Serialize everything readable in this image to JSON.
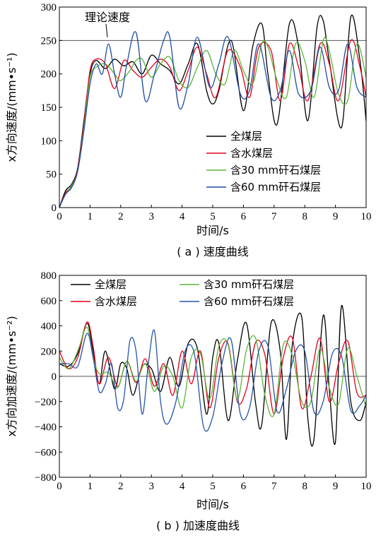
{
  "chart_data": [
    {
      "type": "line",
      "panel_caption": "( a ) 速度曲线",
      "xlabel": "时间/s",
      "ylabel": "x方向速度/(mm•s⁻¹)",
      "xlim": [
        0,
        10
      ],
      "ylim": [
        0,
        300
      ],
      "xticks": [
        "0",
        "1",
        "2",
        "3",
        "4",
        "5",
        "6",
        "7",
        "8",
        "9",
        "10"
      ],
      "yticks": [
        "0",
        "50",
        "100",
        "150",
        "200",
        "250",
        "300"
      ],
      "reference_line": {
        "y": 250,
        "label": "理论速度"
      },
      "legend_position": "lower-right",
      "grid": false,
      "series": [
        {
          "name": "全煤层",
          "color": "#000000",
          "x": [
            0,
            0.2,
            0.4,
            0.6,
            0.8,
            1.0,
            1.2,
            1.5,
            1.8,
            2.1,
            2.4,
            2.7,
            3.0,
            3.3,
            3.6,
            3.9,
            4.2,
            4.5,
            4.8,
            5.0,
            5.2,
            5.6,
            6.0,
            6.3,
            6.6,
            6.8,
            7.1,
            7.5,
            7.8,
            8.1,
            8.4,
            8.6,
            8.8,
            9.2,
            9.5,
            9.8,
            10.0
          ],
          "values": [
            0,
            25,
            35,
            60,
            130,
            200,
            220,
            208,
            222,
            212,
            218,
            200,
            228,
            215,
            205,
            185,
            215,
            245,
            175,
            155,
            175,
            250,
            145,
            240,
            275,
            200,
            125,
            275,
            240,
            130,
            270,
            280,
            220,
            120,
            285,
            220,
            130
          ]
        },
        {
          "name": "含水煤层",
          "color": "#e3001b",
          "x": [
            0,
            0.2,
            0.4,
            0.6,
            0.8,
            1.0,
            1.2,
            1.5,
            1.8,
            2.1,
            2.4,
            2.7,
            3.0,
            3.3,
            3.6,
            3.9,
            4.2,
            4.5,
            4.8,
            5.1,
            5.5,
            5.9,
            6.2,
            6.5,
            6.9,
            7.2,
            7.5,
            7.8,
            8.1,
            8.5,
            8.8,
            9.1,
            9.5,
            9.8,
            10.0
          ],
          "values": [
            0,
            22,
            32,
            58,
            125,
            205,
            222,
            215,
            178,
            220,
            205,
            195,
            210,
            222,
            210,
            175,
            205,
            240,
            200,
            165,
            235,
            210,
            165,
            240,
            235,
            160,
            245,
            210,
            160,
            245,
            215,
            160,
            250,
            210,
            165
          ]
        },
        {
          "name": "含30 mm矸石煤层",
          "color": "#5db53a",
          "x": [
            0,
            0.2,
            0.4,
            0.6,
            0.8,
            1.0,
            1.2,
            1.5,
            1.8,
            2.0,
            2.3,
            2.5,
            2.7,
            3.0,
            3.3,
            3.6,
            3.9,
            4.2,
            4.5,
            4.8,
            5.1,
            5.4,
            5.7,
            6.0,
            6.3,
            6.6,
            6.8,
            7.1,
            7.4,
            7.7,
            8.0,
            8.3,
            8.6,
            8.8,
            9.1,
            9.4,
            9.7,
            10.0
          ],
          "values": [
            0,
            20,
            33,
            55,
            120,
            195,
            210,
            215,
            200,
            190,
            205,
            220,
            222,
            195,
            215,
            225,
            190,
            180,
            210,
            235,
            200,
            185,
            235,
            205,
            185,
            245,
            240,
            190,
            165,
            245,
            220,
            165,
            250,
            235,
            170,
            160,
            245,
            195
          ]
        },
        {
          "name": "含60 mm矸石煤层",
          "color": "#1f4ea1",
          "x": [
            0,
            0.2,
            0.4,
            0.6,
            0.8,
            1.0,
            1.2,
            1.4,
            1.6,
            1.8,
            2.0,
            2.2,
            2.5,
            2.8,
            3.1,
            3.4,
            3.6,
            3.9,
            4.2,
            4.5,
            4.9,
            5.2,
            5.5,
            5.9,
            6.2,
            6.5,
            6.9,
            7.2,
            7.5,
            7.8,
            8.2,
            8.5,
            8.8,
            9.1,
            9.4,
            9.7,
            10.0
          ],
          "values": [
            0,
            20,
            30,
            55,
            115,
            185,
            215,
            200,
            245,
            200,
            165,
            215,
            262,
            160,
            200,
            250,
            255,
            150,
            185,
            255,
            180,
            215,
            255,
            170,
            175,
            245,
            165,
            175,
            235,
            170,
            175,
            240,
            180,
            175,
            245,
            180,
            165
          ]
        }
      ]
    },
    {
      "type": "line",
      "panel_caption": "( b ) 加速度曲线",
      "xlabel": "时间/s",
      "ylabel": "x方向加速度/(mm•s⁻²)",
      "xlim": [
        0,
        10
      ],
      "ylim": [
        -800,
        800
      ],
      "xticks": [
        "0",
        "1",
        "2",
        "3",
        "4",
        "5",
        "6",
        "7",
        "8",
        "9",
        "10"
      ],
      "yticks": [
        "−800",
        "−600",
        "−400",
        "−200",
        "0",
        "200",
        "400",
        "600",
        "800"
      ],
      "reference_line": {
        "y": 0
      },
      "legend_position": "top",
      "grid": false,
      "series": [
        {
          "name": "全煤层",
          "color": "#000000",
          "x": [
            0,
            0.3,
            0.6,
            0.9,
            1.1,
            1.3,
            1.5,
            1.8,
            2.0,
            2.2,
            2.4,
            2.7,
            3.0,
            3.3,
            3.6,
            3.9,
            4.2,
            4.5,
            4.8,
            5.0,
            5.2,
            5.5,
            5.8,
            6.1,
            6.4,
            6.6,
            6.9,
            7.2,
            7.4,
            7.6,
            7.9,
            8.1,
            8.3,
            8.6,
            8.8,
            9.0,
            9.2,
            9.5,
            9.8,
            10.0
          ],
          "values": [
            100,
            80,
            180,
            420,
            200,
            -60,
            200,
            -100,
            100,
            60,
            -150,
            80,
            60,
            -120,
            150,
            -80,
            260,
            220,
            -300,
            150,
            260,
            -350,
            120,
            420,
            -220,
            -380,
            420,
            200,
            -500,
            260,
            470,
            -330,
            -500,
            480,
            -100,
            -520,
            560,
            -200,
            -350,
            -200
          ]
        },
        {
          "name": "含水煤层",
          "color": "#e3001b",
          "x": [
            0,
            0.3,
            0.6,
            0.9,
            1.1,
            1.3,
            1.6,
            1.9,
            2.2,
            2.5,
            2.8,
            3.1,
            3.4,
            3.7,
            4.0,
            4.3,
            4.6,
            4.9,
            5.2,
            5.5,
            5.8,
            6.1,
            6.4,
            6.7,
            7.0,
            7.3,
            7.6,
            7.9,
            8.2,
            8.5,
            8.8,
            9.1,
            9.4,
            9.7,
            10.0
          ],
          "values": [
            200,
            60,
            150,
            430,
            240,
            -60,
            150,
            -80,
            120,
            -50,
            140,
            -80,
            100,
            -150,
            200,
            -60,
            200,
            -250,
            150,
            260,
            -200,
            -100,
            270,
            170,
            -300,
            150,
            300,
            -250,
            0,
            300,
            -200,
            100,
            280,
            -130,
            -150
          ]
        },
        {
          "name": "含30 mm矸石煤层",
          "color": "#5db53a",
          "x": [
            0,
            0.3,
            0.6,
            0.9,
            1.1,
            1.3,
            1.6,
            1.9,
            2.2,
            2.5,
            2.8,
            3.1,
            3.4,
            3.7,
            4.0,
            4.3,
            4.6,
            4.9,
            5.2,
            5.5,
            5.8,
            6.1,
            6.4,
            6.7,
            7.0,
            7.3,
            7.6,
            7.9,
            8.2,
            8.5,
            8.8,
            9.1,
            9.4,
            9.7,
            10.0
          ],
          "values": [
            150,
            60,
            200,
            390,
            150,
            20,
            30,
            -90,
            120,
            -40,
            100,
            -120,
            80,
            0,
            -250,
            150,
            180,
            -180,
            240,
            250,
            -180,
            210,
            300,
            -150,
            -300,
            250,
            160,
            -200,
            -200,
            220,
            -90,
            -220,
            220,
            0,
            -250
          ]
        },
        {
          "name": "含60 mm矸石煤层",
          "color": "#2554a6",
          "x": [
            0,
            0.3,
            0.6,
            0.9,
            1.1,
            1.3,
            1.5,
            1.7,
            1.9,
            2.1,
            2.3,
            2.5,
            2.7,
            2.9,
            3.1,
            3.3,
            3.5,
            3.8,
            4.1,
            4.4,
            4.7,
            5.0,
            5.3,
            5.6,
            5.9,
            6.2,
            6.5,
            6.8,
            7.1,
            7.4,
            7.7,
            8.0,
            8.3,
            8.6,
            8.9,
            9.2,
            9.5,
            9.8,
            10.0
          ],
          "values": [
            100,
            100,
            80,
            340,
            150,
            -120,
            -60,
            100,
            -250,
            -180,
            280,
            200,
            -300,
            100,
            360,
            -200,
            -380,
            -200,
            200,
            180,
            -400,
            -320,
            100,
            290,
            -300,
            -250,
            200,
            240,
            -280,
            -100,
            200,
            200,
            -280,
            -200,
            180,
            160,
            -270,
            -230,
            -150
          ]
        }
      ]
    }
  ]
}
